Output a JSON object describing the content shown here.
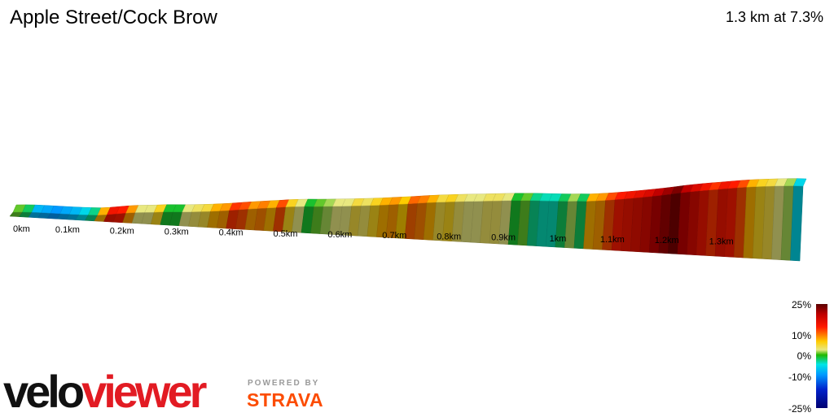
{
  "title": "Apple Street/Cock Brow",
  "summary": "1.3 km at 7.3%",
  "chart_data": {
    "type": "area",
    "x_unit": "km",
    "x_ticks": [
      "0km",
      "0.1km",
      "0.2km",
      "0.3km",
      "0.4km",
      "0.5km",
      "0.6km",
      "0.7km",
      "0.8km",
      "0.9km",
      "1km",
      "1.1km",
      "1.2km",
      "1.3km"
    ],
    "x_tick_values": [
      0,
      0.1,
      0.2,
      0.3,
      0.4,
      0.5,
      0.6,
      0.7,
      0.8,
      0.9,
      1.0,
      1.1,
      1.2,
      1.3
    ],
    "xlim": [
      0,
      1.45
    ],
    "gradient_pct": [
      1,
      -2,
      -8,
      -9,
      -10,
      -9,
      -8,
      -6,
      -3,
      8,
      15,
      14,
      9,
      3,
      3,
      6,
      -1,
      -1,
      3,
      4,
      5,
      8,
      9,
      13,
      12,
      9,
      10,
      8,
      12,
      6,
      3,
      -1,
      1,
      2,
      3,
      3,
      5,
      4,
      6,
      8,
      9,
      7,
      11,
      10,
      8,
      5,
      6,
      4,
      3,
      3,
      4,
      4,
      3,
      -1,
      1,
      -3,
      -4,
      -4,
      -2,
      2,
      -2,
      8,
      9,
      12,
      14,
      15,
      16,
      17,
      19,
      21,
      23,
      19,
      17,
      15,
      13,
      15,
      14,
      12,
      8,
      6,
      5,
      3,
      2,
      -6
    ],
    "gradient_scale": {
      "ticks": [
        "25%",
        "10%",
        "0%",
        "-10%",
        "-25%"
      ],
      "tick_values": [
        25,
        10,
        0,
        -10,
        -25
      ],
      "range": [
        -25,
        25
      ]
    }
  },
  "branding": {
    "logo_part1": "velo",
    "logo_part2": "viewer",
    "powered_by": "POWERED BY",
    "strava": "STRAVA"
  }
}
